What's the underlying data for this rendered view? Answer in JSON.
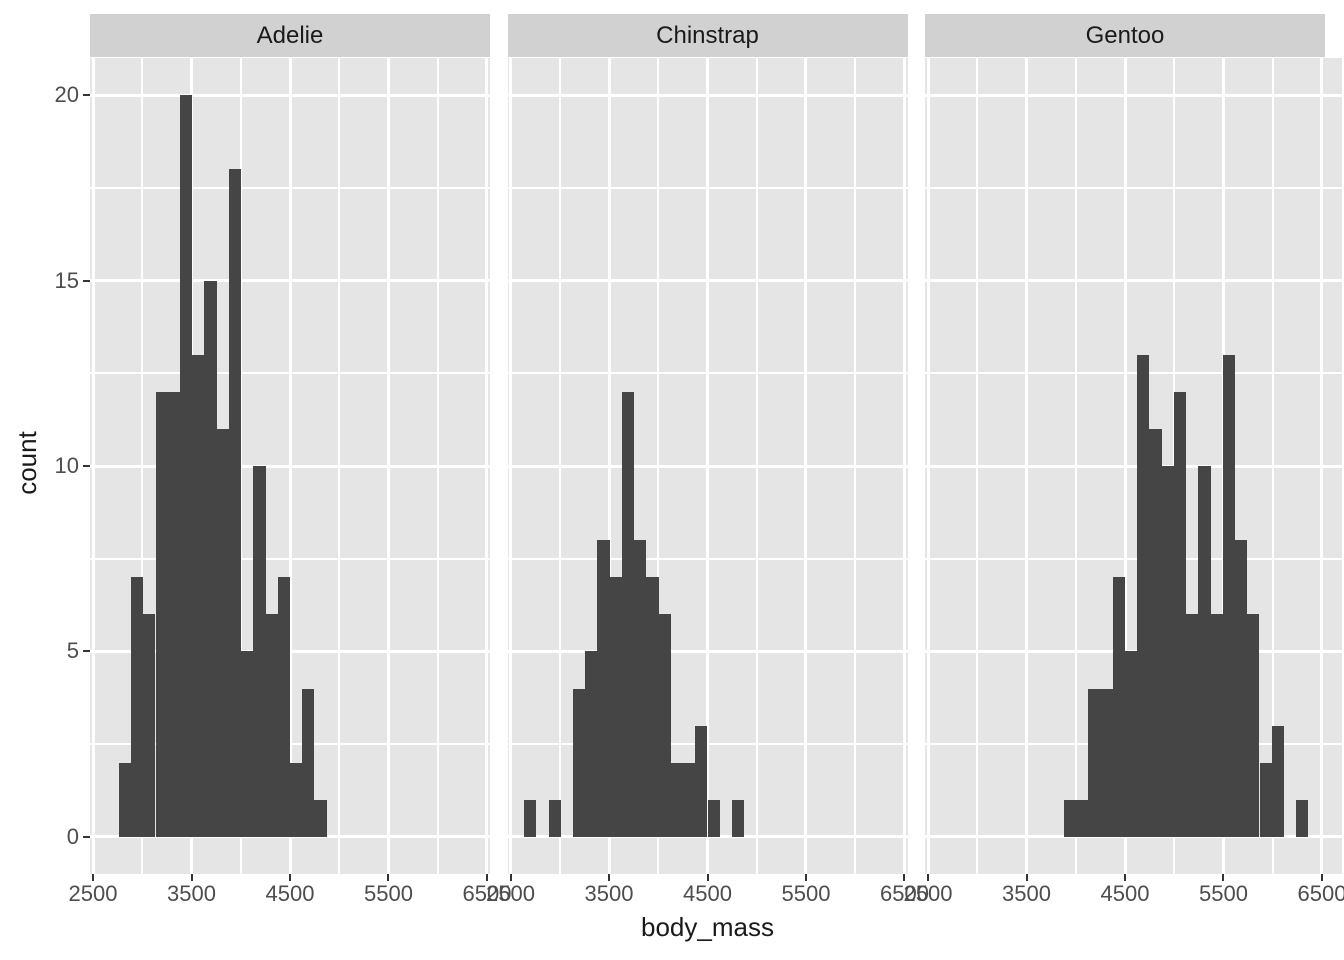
{
  "chart_data": {
    "type": "bar",
    "subtype": "faceted-histogram",
    "title": "",
    "xlabel": "body_mass",
    "ylabel": "count",
    "legend": "none",
    "grid": true,
    "bin_width": 124.14,
    "x_domain": [
      2469.5,
      6530.5
    ],
    "y_domain": [
      -1,
      21
    ],
    "x_ticks": [
      2500,
      3500,
      4500,
      5500,
      6500
    ],
    "x_minor_ticks": [
      3000,
      4000,
      5000,
      6000
    ],
    "y_ticks": [
      0,
      5,
      10,
      15,
      20
    ],
    "y_minor_ticks": [
      2.5,
      7.5,
      12.5,
      17.5
    ],
    "facets": [
      {
        "label": "Adelie",
        "bins": [
          {
            "center": 2824.1,
            "count": 2
          },
          {
            "center": 2948.3,
            "count": 7
          },
          {
            "center": 3072.4,
            "count": 6
          },
          {
            "center": 3196.6,
            "count": 12
          },
          {
            "center": 3320.7,
            "count": 12
          },
          {
            "center": 3444.8,
            "count": 20
          },
          {
            "center": 3569.0,
            "count": 13
          },
          {
            "center": 3693.1,
            "count": 15
          },
          {
            "center": 3817.2,
            "count": 11
          },
          {
            "center": 3941.4,
            "count": 18
          },
          {
            "center": 4065.5,
            "count": 5
          },
          {
            "center": 4189.7,
            "count": 10
          },
          {
            "center": 4313.8,
            "count": 6
          },
          {
            "center": 4437.9,
            "count": 7
          },
          {
            "center": 4562.1,
            "count": 2
          },
          {
            "center": 4686.2,
            "count": 4
          },
          {
            "center": 4810.3,
            "count": 1
          }
        ]
      },
      {
        "label": "Chinstrap",
        "bins": [
          {
            "center": 2700.0,
            "count": 1
          },
          {
            "center": 2948.3,
            "count": 1
          },
          {
            "center": 3196.6,
            "count": 4
          },
          {
            "center": 3320.7,
            "count": 5
          },
          {
            "center": 3444.8,
            "count": 8
          },
          {
            "center": 3569.0,
            "count": 7
          },
          {
            "center": 3693.1,
            "count": 12
          },
          {
            "center": 3817.2,
            "count": 8
          },
          {
            "center": 3941.4,
            "count": 7
          },
          {
            "center": 4065.5,
            "count": 6
          },
          {
            "center": 4189.7,
            "count": 2
          },
          {
            "center": 4313.8,
            "count": 2
          },
          {
            "center": 4437.9,
            "count": 3
          },
          {
            "center": 4562.1,
            "count": 1
          },
          {
            "center": 4810.3,
            "count": 1
          }
        ]
      },
      {
        "label": "Gentoo",
        "bins": [
          {
            "center": 3941.4,
            "count": 1
          },
          {
            "center": 4065.5,
            "count": 1
          },
          {
            "center": 4189.7,
            "count": 4
          },
          {
            "center": 4313.8,
            "count": 4
          },
          {
            "center": 4437.9,
            "count": 7
          },
          {
            "center": 4562.1,
            "count": 5
          },
          {
            "center": 4686.2,
            "count": 13
          },
          {
            "center": 4810.3,
            "count": 11
          },
          {
            "center": 4934.5,
            "count": 10
          },
          {
            "center": 5058.6,
            "count": 12
          },
          {
            "center": 5182.8,
            "count": 6
          },
          {
            "center": 5306.9,
            "count": 10
          },
          {
            "center": 5431.0,
            "count": 6
          },
          {
            "center": 5555.2,
            "count": 13
          },
          {
            "center": 5679.3,
            "count": 8
          },
          {
            "center": 5803.4,
            "count": 6
          },
          {
            "center": 5927.6,
            "count": 2
          },
          {
            "center": 6051.7,
            "count": 3
          },
          {
            "center": 6300.0,
            "count": 1
          }
        ]
      }
    ]
  },
  "colors": {
    "bar": "#454545",
    "panel_bg": "#e5e5e5",
    "strip_bg": "#d1d1d1",
    "gridline": "#ffffff",
    "tick_label": "#4d4d4d",
    "axis_title": "#1a1a1a",
    "strip_text": "#1a1a1a",
    "tick_mark": "#333333"
  }
}
